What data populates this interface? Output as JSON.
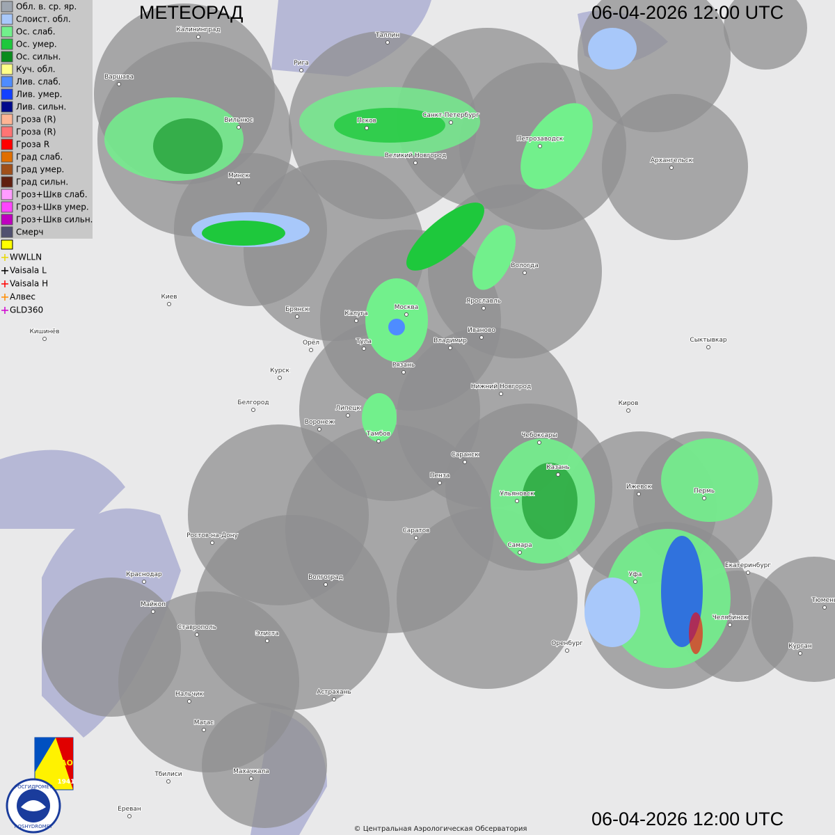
{
  "header": {
    "title": "МЕТЕОРАД",
    "timestamp_top": "06-04-2026  12:00 UTC",
    "timestamp_bottom": "06-04-2026  12:00 UTC"
  },
  "legend": [
    {
      "label": "Обл. в. ср. яр.",
      "color": "#9ea6b0"
    },
    {
      "label": "Слоист. обл.",
      "color": "#a8c8fa"
    },
    {
      "label": "Ос. слаб.",
      "color": "#72f08c"
    },
    {
      "label": "Ос. умер.",
      "color": "#1ec83c"
    },
    {
      "label": "Ос. сильн.",
      "color": "#0a8c1e"
    },
    {
      "label": "Куч. обл.",
      "color": "#ffff88"
    },
    {
      "label": "Лив. слаб.",
      "color": "#4e8cff"
    },
    {
      "label": "Лив. умер.",
      "color": "#1240ff"
    },
    {
      "label": "Лив. сильн.",
      "color": "#000a8c"
    },
    {
      "label": "Гроза (R)",
      "color": "#ffb494"
    },
    {
      "label": "Гроза (R)",
      "color": "#ff7474"
    },
    {
      "label": "Гроза R",
      "color": "#ff0000"
    },
    {
      "label": "Град слаб.",
      "color": "#e06e00"
    },
    {
      "label": "Град умер.",
      "color": "#a0501a"
    },
    {
      "label": "Град сильн.",
      "color": "#602010"
    },
    {
      "label": "Гроз+Шкв слаб.",
      "color": "#ff9cff"
    },
    {
      "label": "Гроз+Шкв умер.",
      "color": "#ff44ff"
    },
    {
      "label": "Гроз+Шкв сильн.",
      "color": "#c000c0"
    },
    {
      "label": "Смерч",
      "color": "#505070"
    }
  ],
  "lightning": [
    {
      "label": "WWLLN",
      "color": "#e8d800"
    },
    {
      "label": "Vaisala L",
      "color": "#000000"
    },
    {
      "label": "Vaisala H",
      "color": "#ff0000"
    },
    {
      "label": "Алвес",
      "color": "#ff8c00"
    },
    {
      "label": "GLD360",
      "color": "#d000d0"
    }
  ],
  "cities": [
    "Калининград",
    "Таллин",
    "Рига",
    "Варшава",
    "Вильнюс",
    "Псков",
    "Санкт-Петербург",
    "Великий Новгород",
    "Петрозаводск",
    "Архангельск",
    "Минск",
    "Вологда",
    "Киев",
    "Брянск",
    "Калуга",
    "Москва",
    "Ярославль",
    "Иваново",
    "Кишинёв",
    "Тула",
    "Владимир",
    "Сыктывкар",
    "Орёл",
    "Рязань",
    "Курск",
    "Нижний Новгород",
    "Белгород",
    "Киров",
    "Воронеж",
    "Липецк",
    "Тамбов",
    "Чебоксары",
    "Саранск",
    "Пенза",
    "Казань",
    "Ижевск",
    "Пермь",
    "Ульяновск",
    "Ростов-на-Дону",
    "Саратов",
    "Самара",
    "Уфа",
    "Екатеринбург",
    "Краснодар",
    "Волгоград",
    "Тюмень",
    "Майкоп",
    "Челябинск",
    "Ставрополь",
    "Элиста",
    "Оренбург",
    "Курган",
    "Астрахань",
    "Нальчик",
    "Магас",
    "Тбилиси",
    "Махачкала",
    "Ереван"
  ],
  "logo": {
    "agency": "РОСГИДРОМЕТ",
    "agency_en": "ROSHYDROMET",
    "org": "ЦАО",
    "year": "1941"
  },
  "footer": {
    "copyright": "© Центральная Аэрологическая Обсерватория"
  }
}
